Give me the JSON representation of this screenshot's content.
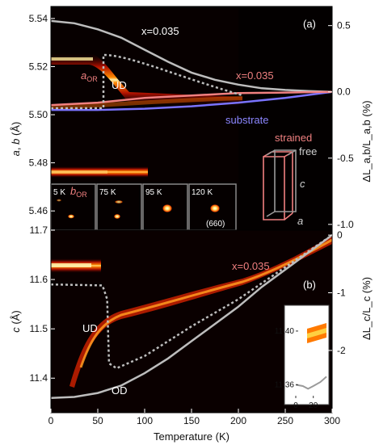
{
  "chart_data": [
    {
      "type": "heatmap",
      "panel_label": "(a)",
      "xlim": [
        0,
        300
      ],
      "ylim": [
        5.452,
        5.545
      ],
      "ylabel_html_parts": [
        "a",
        ", ",
        "b",
        " (Å)"
      ],
      "yticks": [
        "5.54",
        "5.52",
        "5.50",
        "5.48",
        "5.46"
      ],
      "ytick_values": [
        5.54,
        5.52,
        5.5,
        5.48,
        5.46
      ],
      "right_axis_label": "ΔL_a,b/L_a,b (%)",
      "right_ticks": [
        "0.5",
        "0.0",
        "-0.5",
        "-1.0"
      ],
      "right_tick_values": [
        0.5,
        0.0,
        -0.5,
        -1.0
      ],
      "annotations": {
        "x_top": "x=0.035",
        "x_right": "x=0.035",
        "ud": "UD",
        "a_or": "a",
        "a_or_sub": "OR",
        "b_or": "b",
        "b_or_sub": "OR",
        "substrate": "substrate",
        "strained": "strained",
        "free": "free",
        "box_c": "c",
        "box_a": "a"
      },
      "series": [
        {
          "name": "x=0.035",
          "role": "free bulk thermal expansion",
          "x": [
            0,
            25,
            50,
            75,
            100,
            125,
            150,
            175,
            200,
            225,
            250,
            275,
            300
          ],
          "y": [
            5.539,
            5.538,
            5.5355,
            5.532,
            5.527,
            5.522,
            5.5175,
            5.5145,
            5.5125,
            5.511,
            5.5103,
            5.5098,
            5.5095
          ]
        },
        {
          "name": "substrate",
          "x": [
            0,
            50,
            100,
            150,
            200,
            250,
            300
          ],
          "y": [
            5.502,
            5.502,
            5.5025,
            5.5035,
            5.505,
            5.507,
            5.5095
          ]
        },
        {
          "name": "x=0.035",
          "role": "strained film",
          "x": [
            0,
            50,
            100,
            150,
            200,
            250,
            300
          ],
          "y": [
            5.504,
            5.505,
            5.507,
            5.508,
            5.509,
            5.5092,
            5.5095
          ]
        }
      ],
      "insets": [
        {
          "label": "5 K"
        },
        {
          "label": "75 K"
        },
        {
          "label": "95 K"
        },
        {
          "label": "120 K"
        },
        {
          "label": "(660)"
        }
      ]
    },
    {
      "type": "heatmap",
      "panel_label": "(b)",
      "xlim": [
        0,
        300
      ],
      "ylim": [
        11.33,
        11.7
      ],
      "xlabel": "Temperature (K)",
      "xticks": [
        "0",
        "50",
        "100",
        "150",
        "200",
        "250",
        "300"
      ],
      "xtick_values": [
        0,
        50,
        100,
        150,
        200,
        250,
        300
      ],
      "ylabel_html_parts": [
        "c",
        " (Å)"
      ],
      "yticks": [
        "11.7",
        "11.6",
        "11.5",
        "11.4"
      ],
      "ytick_values": [
        11.7,
        11.6,
        11.5,
        11.4
      ],
      "right_axis_label": "ΔL_c/L_c (%)",
      "right_ticks": [
        "0",
        "-1",
        "-2"
      ],
      "right_tick_values": [
        0,
        -1,
        -2
      ],
      "annotations": {
        "x_label": "x=0.035",
        "ud": "UD",
        "od": "OD"
      },
      "series": [
        {
          "name": "OD",
          "x": [
            0,
            25,
            50,
            75,
            100,
            125,
            150,
            175,
            200,
            225,
            250,
            275,
            300
          ],
          "y": [
            11.36,
            11.362,
            11.37,
            11.385,
            11.41,
            11.44,
            11.475,
            11.51,
            11.545,
            11.585,
            11.62,
            11.655,
            11.69
          ]
        },
        {
          "name": "UD",
          "x": [
            0,
            55,
            60,
            62,
            70,
            100,
            150,
            200,
            250,
            300
          ],
          "y": [
            11.59,
            11.588,
            11.56,
            11.43,
            11.42,
            11.445,
            11.505,
            11.56,
            11.625,
            11.69
          ]
        }
      ],
      "inset": {
        "yticks": [
          "11.40",
          "11.36"
        ],
        "ytick_values": [
          11.4,
          11.36
        ],
        "xticks": [
          "0",
          "20"
        ],
        "xtick_values": [
          0,
          20
        ],
        "xlim": [
          0,
          35
        ],
        "ylim": [
          11.35,
          11.415
        ]
      }
    }
  ]
}
